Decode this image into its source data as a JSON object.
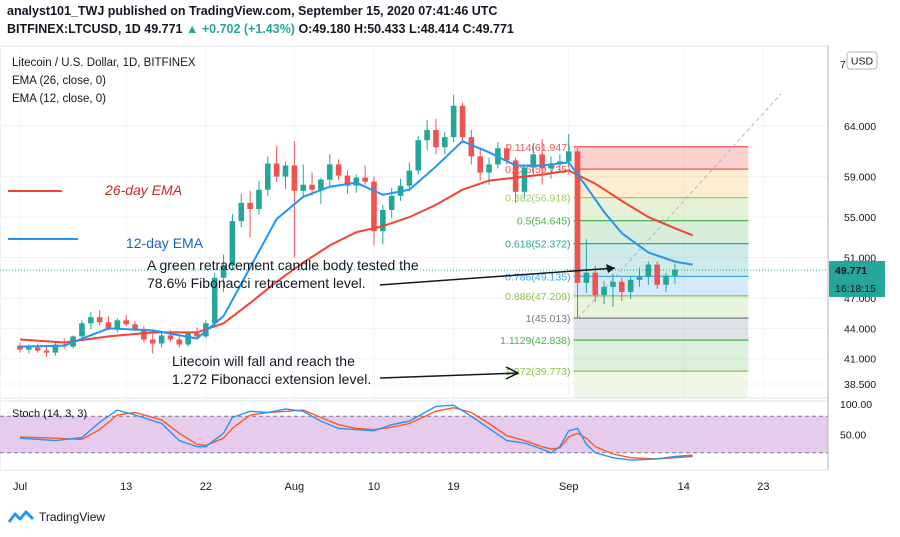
{
  "header": {
    "publish_line": "analyst101_TWJ published on TradingView.com, September 15, 2020 07:41:46 UTC",
    "symbol": "BITFINEX:LTCUSD, 1D",
    "last": "49.771",
    "change": "▲ +0.702 (+1.43%)",
    "ohlc": "O:49.180 H:50.433 L:48.414 C:49.771"
  },
  "legend": {
    "title": "Litecoin / U.S. Dollar, 1D, BITFINEX",
    "ema26": "EMA (26, close, 0)",
    "ema12": "EMA (12, close, 0)"
  },
  "currency_badge": "USD",
  "price_badge": "49.771",
  "countdown_badge": "16:18:15",
  "top_clipped_tick": "7",
  "annotations": {
    "ema26_label": "26-day EMA",
    "ema12_label": "12-day EMA",
    "note1_line1": "A green retracement candle body tested the",
    "note1_line2": "78.6% Fibonacci retracement level.",
    "note2_line1": "Litecoin will fall and reach the",
    "note2_line2": "1.272 Fibonacci extension level."
  },
  "stoch_legend": "Stoch (14, 3, 3)",
  "stoch_axis": [
    "100.00",
    "50.00"
  ],
  "brand": "TradingView",
  "colors": {
    "up": "#26a69a",
    "down": "#ef5350",
    "ema26": "#f44336",
    "ema12": "#2196f3",
    "stoch_k": "#2196f3",
    "stoch_d": "#ff5722",
    "stoch_band": "#e1bee7"
  },
  "chart_data": {
    "type": "candlestick",
    "title": "Litecoin / U.S. Dollar, 1D, BITFINEX",
    "y_ticks": [
      64.0,
      59.0,
      55.0,
      51.0,
      47.0,
      44.0,
      41.0,
      38.5
    ],
    "y_tick_labels": [
      "64.000",
      "59.000",
      "55.000",
      "51.000",
      "47.000",
      "44.000",
      "41.000",
      "38.500"
    ],
    "x_ticks": [
      {
        "label": "Jul",
        "day": 0
      },
      {
        "label": "13",
        "day": 12
      },
      {
        "label": "22",
        "day": 21
      },
      {
        "label": "Aug",
        "day": 31
      },
      {
        "label": "10",
        "day": 40
      },
      {
        "label": "19",
        "day": 49
      },
      {
        "label": "Sep",
        "day": 62
      },
      {
        "label": "14",
        "day": 75
      },
      {
        "label": "23",
        "day": 84
      }
    ],
    "candles": [
      [
        42.3,
        42.6,
        41.6,
        41.9
      ],
      [
        41.9,
        42.4,
        41.5,
        42.1
      ],
      [
        42.1,
        42.5,
        41.6,
        41.8
      ],
      [
        41.8,
        42.2,
        41.2,
        41.6
      ],
      [
        41.6,
        42.6,
        41.3,
        42.4
      ],
      [
        42.4,
        43.0,
        42.0,
        42.2
      ],
      [
        42.2,
        43.3,
        42.0,
        43.2
      ],
      [
        43.2,
        44.8,
        43.0,
        44.5
      ],
      [
        44.5,
        45.6,
        43.9,
        45.1
      ],
      [
        45.1,
        45.8,
        44.3,
        44.6
      ],
      [
        44.6,
        45.2,
        43.8,
        44.0
      ],
      [
        44.0,
        45.0,
        43.6,
        44.8
      ],
      [
        44.8,
        45.3,
        44.2,
        44.4
      ],
      [
        44.4,
        44.7,
        43.7,
        43.9
      ],
      [
        43.9,
        44.2,
        42.6,
        42.9
      ],
      [
        42.9,
        43.5,
        41.5,
        42.5
      ],
      [
        42.5,
        43.6,
        42.1,
        43.3
      ],
      [
        43.3,
        43.8,
        42.7,
        42.9
      ],
      [
        42.9,
        43.4,
        42.1,
        42.4
      ],
      [
        42.4,
        43.6,
        42.2,
        43.5
      ],
      [
        43.5,
        44.1,
        42.9,
        43.2
      ],
      [
        43.2,
        44.8,
        43.0,
        44.5
      ],
      [
        44.5,
        49.5,
        44.2,
        49.0
      ],
      [
        49.0,
        51.3,
        47.6,
        50.2
      ],
      [
        50.2,
        55.3,
        49.8,
        54.6
      ],
      [
        54.6,
        57.3,
        54.0,
        56.4
      ],
      [
        56.4,
        57.6,
        53.0,
        55.8
      ],
      [
        55.8,
        58.6,
        55.2,
        57.7
      ],
      [
        57.7,
        61.0,
        57.1,
        60.3
      ],
      [
        60.3,
        62.0,
        58.5,
        59.0
      ],
      [
        59.0,
        60.5,
        57.8,
        60.1
      ],
      [
        60.1,
        62.5,
        51.0,
        57.6
      ],
      [
        57.6,
        60.2,
        57.0,
        58.2
      ],
      [
        58.2,
        59.4,
        57.1,
        57.7
      ],
      [
        57.7,
        58.9,
        56.3,
        58.7
      ],
      [
        58.7,
        61.2,
        58.1,
        60.2
      ],
      [
        60.2,
        60.7,
        58.6,
        59.1
      ],
      [
        59.1,
        59.6,
        57.3,
        58.1
      ],
      [
        58.1,
        59.2,
        57.4,
        58.9
      ],
      [
        58.9,
        60.1,
        58.2,
        58.5
      ],
      [
        58.5,
        59.0,
        52.2,
        53.6
      ],
      [
        53.6,
        56.2,
        52.3,
        55.7
      ],
      [
        55.7,
        57.9,
        54.9,
        57.1
      ],
      [
        57.1,
        58.8,
        56.6,
        58.1
      ],
      [
        58.1,
        60.4,
        57.7,
        59.6
      ],
      [
        59.6,
        63.0,
        59.2,
        62.6
      ],
      [
        62.6,
        64.6,
        61.6,
        63.6
      ],
      [
        63.6,
        64.7,
        61.2,
        61.9
      ],
      [
        61.9,
        63.4,
        61.2,
        62.9
      ],
      [
        62.9,
        67.1,
        62.4,
        66.0
      ],
      [
        66.0,
        66.3,
        62.3,
        62.9
      ],
      [
        62.9,
        63.6,
        60.2,
        61.0
      ],
      [
        61.0,
        61.9,
        58.6,
        59.4
      ],
      [
        59.4,
        60.9,
        58.2,
        60.2
      ],
      [
        60.2,
        62.4,
        59.8,
        61.8
      ],
      [
        61.8,
        62.2,
        60.2,
        60.6
      ],
      [
        60.6,
        60.9,
        56.4,
        57.5
      ],
      [
        57.5,
        60.1,
        56.9,
        59.9
      ],
      [
        59.9,
        62.3,
        59.3,
        61.2
      ],
      [
        61.2,
        62.7,
        58.2,
        59.8
      ],
      [
        59.8,
        61.0,
        58.8,
        60.3
      ],
      [
        60.3,
        61.2,
        59.4,
        60.5
      ],
      [
        60.5,
        63.2,
        60.0,
        61.5
      ],
      [
        61.5,
        61.8,
        45.0,
        48.5
      ],
      [
        48.5,
        52.8,
        47.5,
        49.5
      ],
      [
        49.5,
        50.2,
        46.6,
        47.3
      ],
      [
        47.3,
        48.7,
        46.4,
        48.1
      ],
      [
        48.1,
        49.4,
        46.1,
        48.6
      ],
      [
        48.6,
        49.0,
        46.7,
        47.6
      ],
      [
        47.6,
        49.1,
        46.9,
        48.8
      ],
      [
        48.8,
        50.0,
        48.1,
        49.1
      ],
      [
        49.1,
        50.6,
        48.3,
        50.3
      ],
      [
        50.3,
        50.6,
        47.9,
        48.3
      ],
      [
        48.3,
        49.5,
        47.6,
        49.2
      ],
      [
        49.2,
        50.4,
        48.4,
        49.8
      ]
    ],
    "fibonacci": [
      {
        "label": "0.114(61.947)",
        "value": 61.947,
        "color": "#ef5350"
      },
      {
        "label": "0.236(59.735)",
        "value": 59.735,
        "color": "#ef5350"
      },
      {
        "label": "0.382(56.918)",
        "value": 56.918,
        "color": "#9ccc65"
      },
      {
        "label": "0.5(54.645)",
        "value": 54.645,
        "color": "#4caf50"
      },
      {
        "label": "0.618(52.372)",
        "value": 52.372,
        "color": "#26a69a"
      },
      {
        "label": "0.786(49.135)",
        "value": 49.135,
        "color": "#42a5f5"
      },
      {
        "label": "0.886(47.209)",
        "value": 47.209,
        "color": "#8bc34a"
      },
      {
        "label": "1(45.013)",
        "value": 45.013,
        "color": "#787b86"
      },
      {
        "label": "1.1129(42.838)",
        "value": 42.838,
        "color": "#4caf50"
      },
      {
        "label": "1.272(39.773)",
        "value": 39.773,
        "color": "#8bc34a"
      }
    ],
    "ema26_values": [
      [
        0,
        42.9
      ],
      [
        5,
        42.6
      ],
      [
        10,
        43.2
      ],
      [
        15,
        43.6
      ],
      [
        20,
        43.6
      ],
      [
        23,
        44.5
      ],
      [
        26,
        46.5
      ],
      [
        29,
        48.6
      ],
      [
        32,
        50.5
      ],
      [
        35,
        52.2
      ],
      [
        38,
        53.5
      ],
      [
        41,
        54.1
      ],
      [
        44,
        55.0
      ],
      [
        47,
        56.2
      ],
      [
        50,
        57.7
      ],
      [
        53,
        58.6
      ],
      [
        56,
        58.9
      ],
      [
        59,
        59.2
      ],
      [
        62,
        59.6
      ],
      [
        65,
        58.3
      ],
      [
        68,
        56.6
      ],
      [
        71,
        55.0
      ],
      [
        74,
        53.9
      ],
      [
        76,
        53.2
      ]
    ],
    "ema12_values": [
      [
        0,
        42.2
      ],
      [
        5,
        42.3
      ],
      [
        10,
        44.0
      ],
      [
        15,
        43.8
      ],
      [
        20,
        43.0
      ],
      [
        23,
        45.2
      ],
      [
        26,
        50.0
      ],
      [
        29,
        54.8
      ],
      [
        32,
        57.0
      ],
      [
        35,
        58.0
      ],
      [
        38,
        58.4
      ],
      [
        41,
        57.2
      ],
      [
        44,
        57.7
      ],
      [
        47,
        60.0
      ],
      [
        50,
        62.5
      ],
      [
        53,
        61.4
      ],
      [
        56,
        60.1
      ],
      [
        59,
        60.1
      ],
      [
        62,
        60.4
      ],
      [
        64,
        58.0
      ],
      [
        66,
        55.5
      ],
      [
        68,
        53.4
      ],
      [
        71,
        51.5
      ],
      [
        74,
        50.6
      ],
      [
        76,
        50.3
      ]
    ],
    "stochastic": {
      "name": "Stoch (14, 3, 3)",
      "ylim": [
        0,
        100
      ],
      "k": [
        [
          0,
          44
        ],
        [
          4,
          40
        ],
        [
          7,
          45
        ],
        [
          9,
          70
        ],
        [
          11,
          90
        ],
        [
          13,
          82
        ],
        [
          16,
          68
        ],
        [
          18,
          40
        ],
        [
          20,
          30
        ],
        [
          21,
          30
        ],
        [
          23,
          52
        ],
        [
          24,
          78
        ],
        [
          26,
          88
        ],
        [
          28,
          86
        ],
        [
          30,
          92
        ],
        [
          32,
          88
        ],
        [
          34,
          72
        ],
        [
          36,
          60
        ],
        [
          38,
          58
        ],
        [
          40,
          56
        ],
        [
          42,
          66
        ],
        [
          44,
          72
        ],
        [
          47,
          96
        ],
        [
          49,
          98
        ],
        [
          51,
          80
        ],
        [
          53,
          60
        ],
        [
          55,
          40
        ],
        [
          57,
          36
        ],
        [
          59,
          26
        ],
        [
          60,
          20
        ],
        [
          61,
          30
        ],
        [
          62,
          56
        ],
        [
          63,
          60
        ],
        [
          64,
          34
        ],
        [
          65,
          20
        ],
        [
          67,
          12
        ],
        [
          69,
          8
        ],
        [
          72,
          10
        ],
        [
          74,
          14
        ],
        [
          76,
          16
        ]
      ],
      "d": [
        [
          0,
          46
        ],
        [
          4,
          44
        ],
        [
          7,
          42
        ],
        [
          9,
          58
        ],
        [
          11,
          82
        ],
        [
          13,
          86
        ],
        [
          16,
          74
        ],
        [
          18,
          52
        ],
        [
          20,
          34
        ],
        [
          21,
          32
        ],
        [
          23,
          44
        ],
        [
          24,
          60
        ],
        [
          26,
          82
        ],
        [
          28,
          86
        ],
        [
          30,
          88
        ],
        [
          32,
          90
        ],
        [
          34,
          78
        ],
        [
          36,
          66
        ],
        [
          38,
          60
        ],
        [
          40,
          58
        ],
        [
          42,
          62
        ],
        [
          44,
          68
        ],
        [
          47,
          88
        ],
        [
          49,
          94
        ],
        [
          51,
          86
        ],
        [
          53,
          68
        ],
        [
          55,
          48
        ],
        [
          57,
          40
        ],
        [
          59,
          30
        ],
        [
          60,
          26
        ],
        [
          61,
          28
        ],
        [
          62,
          46
        ],
        [
          63,
          52
        ],
        [
          64,
          44
        ],
        [
          65,
          30
        ],
        [
          67,
          18
        ],
        [
          69,
          12
        ],
        [
          72,
          10
        ],
        [
          74,
          12
        ],
        [
          76,
          14
        ]
      ]
    }
  }
}
